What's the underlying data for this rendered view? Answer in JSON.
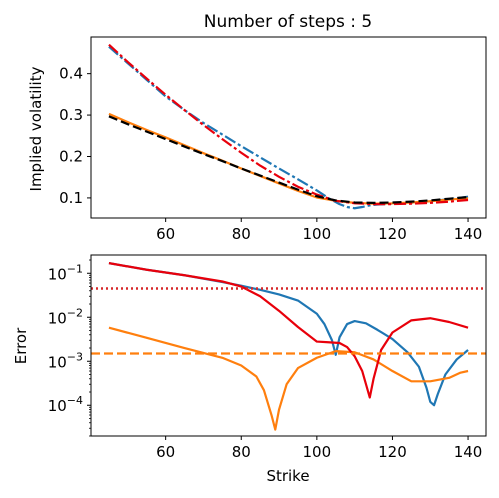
{
  "chart_data": [
    {
      "type": "line",
      "title": "Number of steps : 5",
      "xlabel": "",
      "ylabel": "Implied volatility",
      "xlim": [
        40.25,
        144.75
      ],
      "ylim": [
        0.0515,
        0.4885
      ],
      "x_ticks": [
        60,
        80,
        100,
        120,
        140
      ],
      "y_ticks": [
        0.1,
        0.2,
        0.3,
        0.4
      ],
      "grid": false,
      "series": [
        {
          "color": "#1f77b4",
          "style": "dashdot",
          "x": [
            45,
            50,
            55,
            60,
            65,
            70,
            75,
            80,
            85,
            90,
            95,
            100,
            103,
            106,
            108,
            110,
            112,
            114,
            116,
            118,
            120,
            125,
            130,
            135,
            140
          ],
          "y": [
            0.465,
            0.425,
            0.385,
            0.345,
            0.312,
            0.281,
            0.253,
            0.225,
            0.198,
            0.171,
            0.145,
            0.118,
            0.1,
            0.085,
            0.078,
            0.075,
            0.078,
            0.082,
            0.084,
            0.085,
            0.086,
            0.088,
            0.092,
            0.097,
            0.103
          ]
        },
        {
          "color": "#ff7f0e",
          "style": "solid",
          "x": [
            45,
            50,
            55,
            60,
            65,
            70,
            75,
            80,
            85,
            90,
            95,
            100,
            105,
            110,
            115,
            120,
            125,
            130,
            135,
            140
          ],
          "y": [
            0.303,
            0.283,
            0.264,
            0.246,
            0.227,
            0.208,
            0.19,
            0.171,
            0.153,
            0.135,
            0.117,
            0.101,
            0.093,
            0.088,
            0.086,
            0.087,
            0.089,
            0.092,
            0.096,
            0.099
          ]
        },
        {
          "color": "#e8000b",
          "style": "dashdot",
          "x": [
            45,
            50,
            55,
            60,
            65,
            70,
            75,
            80,
            85,
            90,
            95,
            100,
            105,
            110,
            115,
            120,
            125,
            130,
            135,
            140
          ],
          "y": [
            0.47,
            0.428,
            0.388,
            0.349,
            0.312,
            0.276,
            0.242,
            0.209,
            0.178,
            0.151,
            0.127,
            0.108,
            0.093,
            0.087,
            0.085,
            0.085,
            0.086,
            0.088,
            0.091,
            0.095
          ]
        },
        {
          "color": "#000000",
          "style": "dashed",
          "x": [
            45,
            50,
            55,
            60,
            65,
            70,
            75,
            80,
            85,
            90,
            95,
            100,
            105,
            110,
            115,
            120,
            125,
            130,
            135,
            140
          ],
          "y": [
            0.297,
            0.278,
            0.26,
            0.242,
            0.224,
            0.206,
            0.189,
            0.171,
            0.154,
            0.137,
            0.12,
            0.104,
            0.094,
            0.089,
            0.088,
            0.089,
            0.091,
            0.094,
            0.098,
            0.102
          ]
        }
      ]
    },
    {
      "type": "line",
      "title": "",
      "xlabel": "Strike",
      "ylabel": "Error",
      "yscale": "log",
      "xlim": [
        40.25,
        144.75
      ],
      "ylim": [
        2e-05,
        0.26
      ],
      "x_ticks": [
        60,
        80,
        100,
        120,
        140
      ],
      "y_ticks": [
        {
          "value": 0.1,
          "label": "10",
          "exp": "−1"
        },
        {
          "value": 0.01,
          "label": "10",
          "exp": "−2"
        },
        {
          "value": 0.001,
          "label": "10",
          "exp": "−3"
        },
        {
          "value": 0.0001,
          "label": "10",
          "exp": "−4"
        }
      ],
      "grid": false,
      "series": [
        {
          "color": "#1f77b4",
          "style": "solid",
          "x": [
            45,
            55,
            65,
            75,
            80,
            85,
            90,
            95,
            100,
            102,
            104,
            105,
            106,
            108,
            110,
            113,
            116,
            120,
            124,
            127,
            129,
            130,
            131,
            132,
            134,
            137,
            140
          ],
          "y": [
            0.17,
            0.12,
            0.09,
            0.063,
            0.052,
            0.042,
            0.033,
            0.024,
            0.012,
            0.007,
            0.003,
            0.0014,
            0.0035,
            0.007,
            0.0082,
            0.0073,
            0.0052,
            0.0032,
            0.0016,
            0.00075,
            0.00025,
            0.00012,
            0.0001,
            0.00018,
            0.0005,
            0.0011,
            0.0018
          ]
        },
        {
          "color": "#ff7f0e",
          "style": "solid",
          "x": [
            45,
            55,
            65,
            75,
            80,
            84,
            86,
            88,
            89,
            90,
            92,
            95,
            100,
            105,
            110,
            115,
            120,
            125,
            130,
            135,
            138,
            140
          ],
          "y": [
            0.0058,
            0.0034,
            0.002,
            0.0012,
            0.0008,
            0.00045,
            0.00022,
            6e-05,
            2.8e-05,
            8e-05,
            0.0003,
            0.0007,
            0.0012,
            0.0017,
            0.0016,
            0.0011,
            0.0006,
            0.00035,
            0.00035,
            0.00042,
            0.00055,
            0.0006
          ]
        },
        {
          "color": "#e8000b",
          "style": "solid",
          "x": [
            45,
            55,
            65,
            75,
            80,
            85,
            90,
            95,
            100,
            103,
            106,
            108,
            110,
            112,
            113,
            114,
            115,
            117,
            120,
            125,
            130,
            135,
            140
          ],
          "y": [
            0.17,
            0.12,
            0.09,
            0.065,
            0.05,
            0.03,
            0.014,
            0.006,
            0.0028,
            0.0027,
            0.0026,
            0.0021,
            0.0013,
            0.0006,
            0.0003,
            0.00015,
            0.0004,
            0.0018,
            0.0045,
            0.0085,
            0.0095,
            0.0078,
            0.0058
          ]
        },
        {
          "color": "#d62728",
          "style": "dotted",
          "x": [
            40.25,
            144.75
          ],
          "y": [
            0.045,
            0.045
          ]
        },
        {
          "color": "#ff7f0e",
          "style": "dashed",
          "x": [
            40.25,
            144.75
          ],
          "y": [
            0.0015,
            0.0015
          ]
        }
      ]
    }
  ]
}
